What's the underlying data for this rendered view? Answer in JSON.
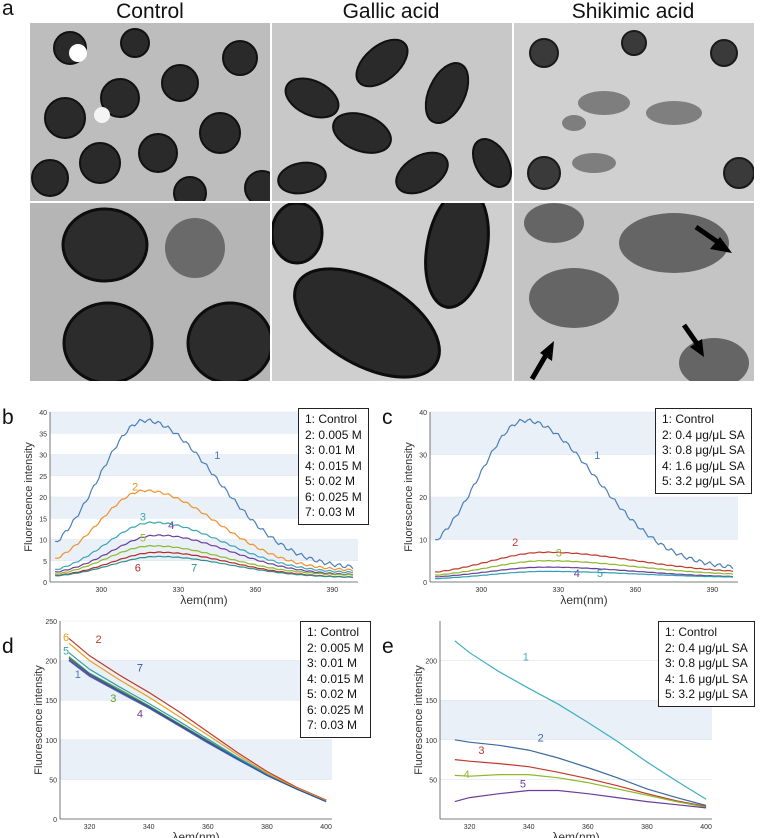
{
  "panel_a": {
    "letter": "a",
    "columns": [
      "Control",
      "Gallic acid",
      "Shikimic acid"
    ]
  },
  "chart_data": [
    {
      "id": "b",
      "letter": "b",
      "type": "line",
      "xlabel": "λem(nm)",
      "ylabel": "Fluorescence intensity",
      "xlim": [
        280,
        400
      ],
      "ylim": [
        0,
        40
      ],
      "xticks": [
        300,
        330,
        360,
        390
      ],
      "yticks": [
        0,
        5,
        10,
        15,
        20,
        25,
        30,
        35,
        40
      ],
      "legend": [
        "1: Control",
        "2: 0.005 M",
        "3: 0.01 M",
        "4: 0.015 M",
        "5: 0.02 M",
        "6: 0.025 M",
        "7: 0.03 M"
      ],
      "series": [
        {
          "label": "1",
          "color": "#4a7fb8",
          "peak_x": 317,
          "peak_y": 38,
          "sigma_l": 18,
          "sigma_r": 28,
          "base_l": 4,
          "base_r": 3,
          "lab": [
            344,
            29
          ]
        },
        {
          "label": "2",
          "color": "#f0902a",
          "peak_x": 317,
          "peak_y": 21.5,
          "sigma_l": 18,
          "sigma_r": 28,
          "base_l": 2.5,
          "base_r": 2.5,
          "lab": [
            312,
            21.5
          ]
        },
        {
          "label": "3",
          "color": "#3aa5b0",
          "peak_x": 320,
          "peak_y": 14,
          "sigma_l": 18,
          "sigma_r": 28,
          "base_l": 1.5,
          "base_r": 2,
          "lab": [
            315,
            14.5
          ]
        },
        {
          "label": "4",
          "color": "#6a3d9a",
          "peak_x": 322,
          "peak_y": 11,
          "sigma_l": 18,
          "sigma_r": 28,
          "base_l": 1.5,
          "base_r": 1.5,
          "lab": [
            326,
            12.5
          ]
        },
        {
          "label": "5",
          "color": "#8cb82a",
          "peak_x": 320,
          "peak_y": 8.5,
          "sigma_l": 18,
          "sigma_r": 28,
          "base_l": 1,
          "base_r": 1.5,
          "lab": [
            315,
            9.5
          ]
        },
        {
          "label": "6",
          "color": "#b22a2a",
          "peak_x": 322,
          "peak_y": 7,
          "sigma_l": 18,
          "sigma_r": 28,
          "base_l": 1,
          "base_r": 1,
          "lab": [
            313,
            2.5
          ]
        },
        {
          "label": "7",
          "color": "#2e8f8f",
          "peak_x": 322,
          "peak_y": 6,
          "sigma_l": 18,
          "sigma_r": 28,
          "base_l": 1,
          "base_r": 1,
          "lab": [
            335,
            2.5
          ]
        }
      ]
    },
    {
      "id": "c",
      "letter": "c",
      "type": "line",
      "xlabel": "λem(nm)",
      "ylabel": "Fluorescence intensity",
      "xlim": [
        280,
        400
      ],
      "ylim": [
        0,
        40
      ],
      "xticks": [
        300,
        330,
        360,
        390
      ],
      "yticks": [
        0,
        10,
        20,
        30,
        40
      ],
      "legend": [
        "1: Control",
        "2: 0.4 μg/μL SA",
        "3: 0.8 μg/μL SA",
        "4: 1.6 μg/μL SA",
        "5: 3.2 μg/μL SA"
      ],
      "series": [
        {
          "label": "1",
          "color": "#4a7fb8",
          "peak_x": 317,
          "peak_y": 38,
          "sigma_l": 18,
          "sigma_r": 28,
          "base_l": 4.5,
          "base_r": 3,
          "lab": [
            344,
            29
          ]
        },
        {
          "label": "2",
          "color": "#c0392b",
          "peak_x": 325,
          "peak_y": 7,
          "sigma_l": 22,
          "sigma_r": 35,
          "base_l": 1.5,
          "base_r": 2,
          "lab": [
            312,
            8.5
          ]
        },
        {
          "label": "3",
          "color": "#8cb82a",
          "peak_x": 325,
          "peak_y": 5,
          "sigma_l": 22,
          "sigma_r": 35,
          "base_l": 1,
          "base_r": 1.5,
          "lab": [
            329,
            6
          ]
        },
        {
          "label": "4",
          "color": "#6a3d9a",
          "peak_x": 325,
          "peak_y": 3.5,
          "sigma_l": 22,
          "sigma_r": 35,
          "base_l": 0.8,
          "base_r": 1,
          "lab": [
            336,
            1.2
          ]
        },
        {
          "label": "5",
          "color": "#2ea0b0",
          "peak_x": 325,
          "peak_y": 2.5,
          "sigma_l": 22,
          "sigma_r": 35,
          "base_l": 0.5,
          "base_r": 1,
          "lab": [
            345,
            1.2
          ]
        }
      ]
    },
    {
      "id": "d",
      "letter": "d",
      "type": "line",
      "xlabel": "λem(nm)",
      "ylabel": "Fluorescence intensity",
      "xlim": [
        310,
        402
      ],
      "ylim": [
        0,
        250
      ],
      "xticks": [
        320,
        340,
        360,
        380,
        400
      ],
      "yticks": [
        0,
        50,
        100,
        150,
        200,
        250
      ],
      "legend": [
        "1: Control",
        "2: 0.005 M",
        "3: 0.01 M",
        "4: 0.015 M",
        "5: 0.02 M",
        "6: 0.025 M",
        "7: 0.03 M"
      ],
      "series": [
        {
          "label": "1",
          "color": "#4a7fb8",
          "x": [
            313,
            320,
            330,
            340,
            350,
            360,
            370,
            380,
            390,
            400
          ],
          "y": [
            200,
            180,
            160,
            140,
            118,
            96,
            75,
            55,
            38,
            22
          ],
          "lab": [
            315,
            178
          ]
        },
        {
          "label": "2",
          "color": "#c0392b",
          "x": [
            313,
            320,
            330,
            340,
            350,
            360,
            370,
            380,
            390,
            400
          ],
          "y": [
            228,
            206,
            182,
            160,
            136,
            110,
            84,
            60,
            40,
            24
          ],
          "lab": [
            322,
            222
          ]
        },
        {
          "label": "3",
          "color": "#5aa02c",
          "x": [
            313,
            320,
            330,
            340,
            350,
            360,
            370,
            380,
            390,
            400
          ],
          "y": [
            205,
            184,
            164,
            143,
            121,
            99,
            77,
            56,
            38,
            23
          ],
          "lab": [
            327,
            148
          ]
        },
        {
          "label": "4",
          "color": "#6a3d9a",
          "x": [
            313,
            320,
            330,
            340,
            350,
            360,
            370,
            380,
            390,
            400
          ],
          "y": [
            201,
            181,
            161,
            141,
            119,
            97,
            76,
            55,
            38,
            22
          ],
          "lab": [
            336,
            128
          ]
        },
        {
          "label": "5",
          "color": "#2ea0b0",
          "x": [
            313,
            320,
            330,
            340,
            350,
            360,
            370,
            380,
            390,
            400
          ],
          "y": [
            210,
            189,
            167,
            146,
            124,
            101,
            78,
            57,
            39,
            23
          ],
          "lab": [
            311,
            208
          ]
        },
        {
          "label": "6",
          "color": "#e8a020",
          "x": [
            313,
            320,
            330,
            340,
            350,
            360,
            370,
            380,
            390,
            400
          ],
          "y": [
            222,
            200,
            176,
            154,
            130,
            106,
            81,
            58,
            39,
            23
          ],
          "lab": [
            311,
            225
          ]
        },
        {
          "label": "7",
          "color": "#2a5aa0",
          "x": [
            313,
            320,
            330,
            340,
            350,
            360,
            370,
            380,
            390,
            400
          ],
          "y": [
            203,
            183,
            162,
            142,
            120,
            98,
            76,
            55,
            38,
            22
          ],
          "lab": [
            336,
            186
          ]
        }
      ]
    },
    {
      "id": "e",
      "letter": "e",
      "type": "line",
      "xlabel": "λem(nm)",
      "ylabel": "Fluorescence intensity",
      "xlim": [
        310,
        402
      ],
      "ylim": [
        0,
        250
      ],
      "xticks": [
        320,
        340,
        360,
        380,
        400
      ],
      "yticks": [
        50,
        100,
        150,
        200
      ],
      "legend": [
        "1: Control",
        "2: 0.4 μg/μL SA",
        "3: 0.8 μg/μL SA",
        "4: 1.6 μg/μL SA",
        "5: 3.2 μg/μL SA"
      ],
      "series": [
        {
          "label": "1",
          "color": "#3ab0c0",
          "x": [
            315,
            320,
            330,
            340,
            350,
            360,
            370,
            380,
            390,
            400
          ],
          "y": [
            225,
            210,
            186,
            165,
            145,
            122,
            98,
            72,
            48,
            25
          ],
          "lab": [
            338,
            200
          ]
        },
        {
          "label": "2",
          "color": "#3a6aa0",
          "x": [
            315,
            320,
            330,
            340,
            350,
            360,
            370,
            380,
            390,
            400
          ],
          "y": [
            100,
            97,
            93,
            87,
            77,
            65,
            52,
            38,
            27,
            17
          ],
          "lab": [
            343,
            98
          ]
        },
        {
          "label": "3",
          "color": "#c0392b",
          "x": [
            315,
            320,
            330,
            340,
            350,
            360,
            370,
            380,
            390,
            400
          ],
          "y": [
            75,
            73,
            70,
            66,
            59,
            51,
            42,
            32,
            23,
            16
          ],
          "lab": [
            323,
            82
          ]
        },
        {
          "label": "4",
          "color": "#8cb82a",
          "x": [
            315,
            320,
            330,
            340,
            350,
            360,
            370,
            380,
            390,
            400
          ],
          "y": [
            55,
            54,
            56,
            56,
            52,
            46,
            38,
            30,
            22,
            15
          ],
          "lab": [
            318,
            52
          ]
        },
        {
          "label": "5",
          "color": "#6a3d9a",
          "x": [
            315,
            320,
            330,
            340,
            350,
            360,
            370,
            380,
            390,
            400
          ],
          "y": [
            22,
            27,
            32,
            36,
            36,
            32,
            27,
            22,
            18,
            14
          ],
          "lab": [
            337,
            40
          ]
        }
      ]
    }
  ],
  "colors": {
    "panel_band": "#eaf0f8",
    "axis": "#555555"
  }
}
